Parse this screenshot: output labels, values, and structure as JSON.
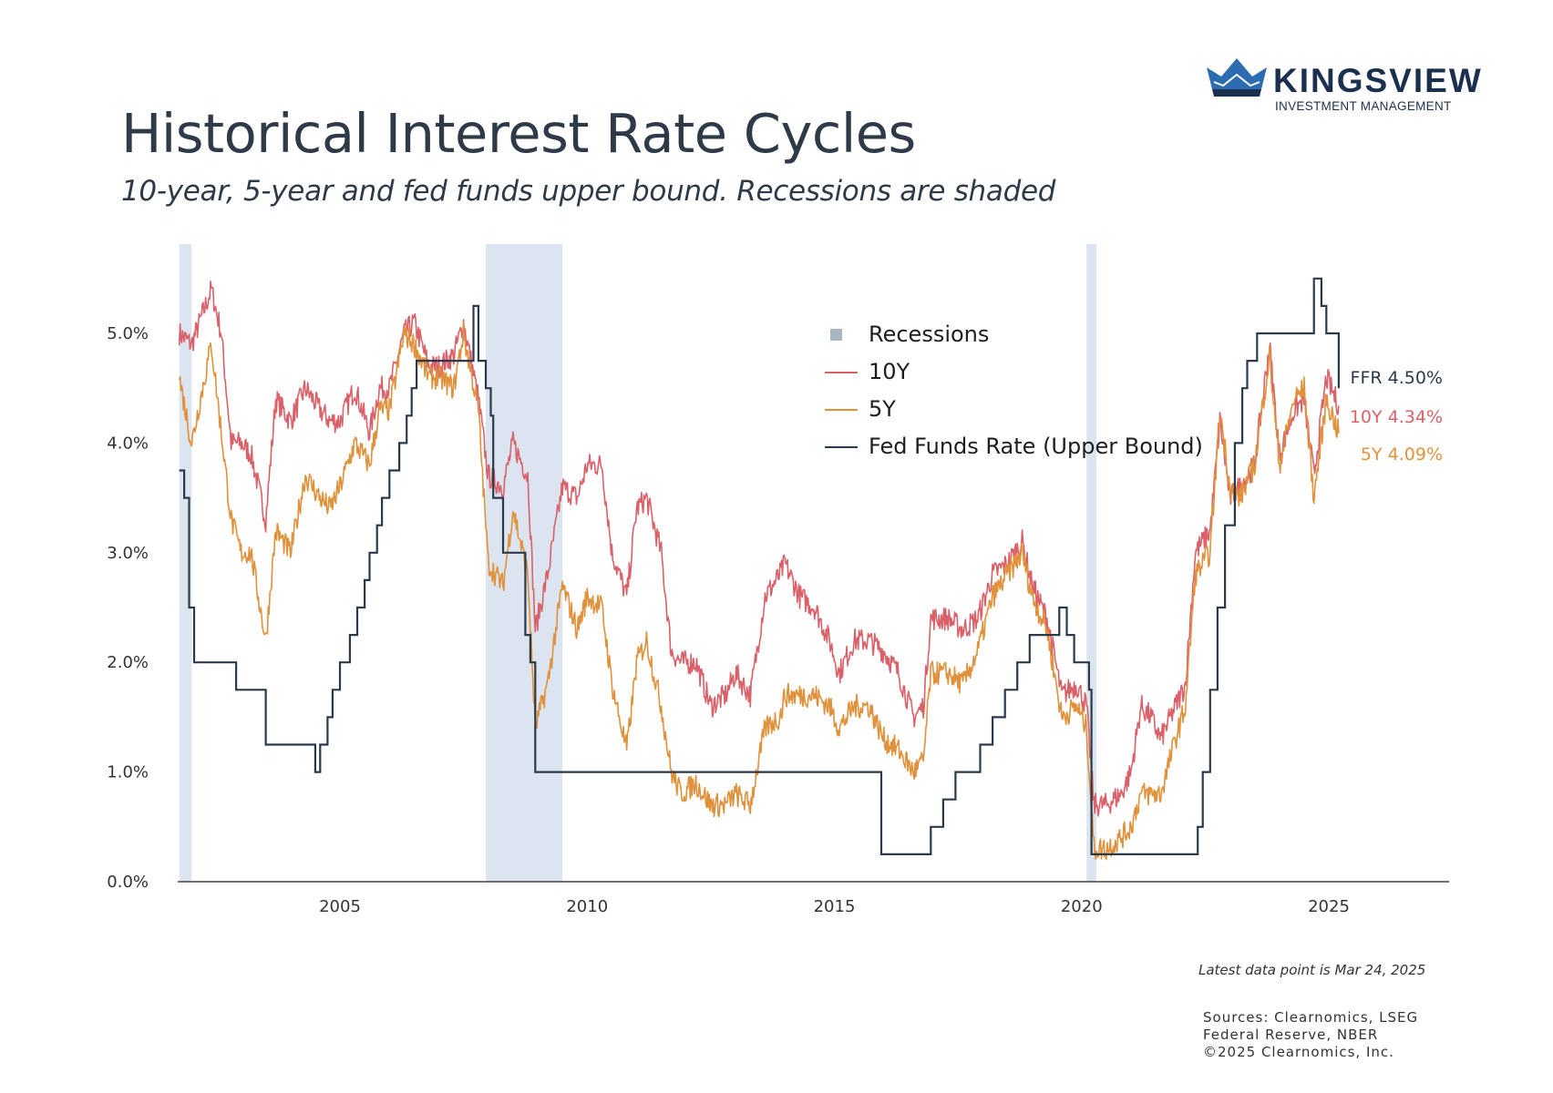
{
  "brand": {
    "name": "KINGSVIEW",
    "tagline": "INVESTMENT MANAGEMENT",
    "colors": {
      "navy": "#1b2f4e",
      "blue": "#2d6cb0"
    }
  },
  "header": {
    "title": "Historical Interest Rate Cycles",
    "subtitle": "10-year, 5-year and fed funds upper bound. Recessions are shaded"
  },
  "footer": {
    "latest": "Latest data point is Mar 24, 2025",
    "sources": [
      "Sources: Clearnomics, LSEG",
      "Federal Reserve, NBER",
      "©2025 Clearnomics, Inc."
    ]
  },
  "chart_data": {
    "type": "line",
    "title": "Historical Interest Rate Cycles",
    "xlabel": "",
    "ylabel": "",
    "xlim": [
      2001.75,
      2027.3
    ],
    "ylim": [
      0,
      5.5
    ],
    "grid": false,
    "legend_position": "top-center",
    "y_ticks": [
      0,
      1,
      2,
      3,
      4,
      5
    ],
    "y_tick_labels": [
      "0.0%",
      "1.0%",
      "2.0%",
      "3.0%",
      "4.0%",
      "5.0%"
    ],
    "x_ticks": [
      2005,
      2010,
      2015,
      2020,
      2025
    ],
    "x_tick_labels": [
      "2005",
      "2010",
      "2015",
      "2020",
      "2025"
    ],
    "legend": [
      {
        "label": "Recessions",
        "kind": "box",
        "color": "#a9b6c2"
      },
      {
        "label": "10Y",
        "kind": "line",
        "color": "#d9626a"
      },
      {
        "label": "5Y",
        "kind": "line",
        "color": "#e0913b"
      },
      {
        "label": "Fed Funds Rate (Upper Bound)",
        "kind": "line",
        "color": "#2b3a4b"
      }
    ],
    "recessions": [
      {
        "start": 2001.75,
        "end": 2002.0
      },
      {
        "start": 2007.95,
        "end": 2009.5
      },
      {
        "start": 2020.1,
        "end": 2020.3
      }
    ],
    "series": [
      {
        "name": "10Y",
        "color": "#d9626a",
        "x": [
          2001.75,
          2002.0,
          2002.4,
          2002.6,
          2002.8,
          2003.0,
          2003.2,
          2003.5,
          2003.7,
          2004.0,
          2004.3,
          2004.6,
          2004.8,
          2005.0,
          2005.3,
          2005.6,
          2005.8,
          2006.0,
          2006.3,
          2006.5,
          2006.8,
          2007.0,
          2007.3,
          2007.5,
          2007.8,
          2008.0,
          2008.3,
          2008.5,
          2008.8,
          2008.95,
          2009.2,
          2009.5,
          2009.8,
          2010.0,
          2010.3,
          2010.5,
          2010.8,
          2011.0,
          2011.2,
          2011.5,
          2011.7,
          2011.9,
          2012.2,
          2012.5,
          2012.8,
          2013.0,
          2013.3,
          2013.6,
          2013.9,
          2014.0,
          2014.3,
          2014.6,
          2014.9,
          2015.1,
          2015.4,
          2015.7,
          2016.0,
          2016.3,
          2016.6,
          2016.8,
          2016.95,
          2017.3,
          2017.6,
          2017.9,
          2018.2,
          2018.5,
          2018.8,
          2019.0,
          2019.3,
          2019.6,
          2019.9,
          2020.1,
          2020.25,
          2020.5,
          2020.8,
          2021.0,
          2021.2,
          2021.4,
          2021.6,
          2021.9,
          2022.1,
          2022.3,
          2022.6,
          2022.8,
          2023.0,
          2023.2,
          2023.5,
          2023.8,
          2024.0,
          2024.3,
          2024.5,
          2024.7,
          2024.95,
          2025.2
        ],
        "values": [
          5.0,
          4.9,
          5.4,
          5.0,
          4.0,
          4.0,
          3.9,
          3.3,
          4.4,
          4.2,
          4.5,
          4.3,
          4.2,
          4.2,
          4.5,
          4.1,
          4.5,
          4.5,
          5.0,
          5.1,
          4.7,
          4.7,
          4.8,
          5.1,
          4.4,
          3.7,
          3.6,
          4.0,
          3.7,
          2.3,
          2.8,
          3.6,
          3.5,
          3.8,
          3.8,
          3.0,
          2.6,
          3.4,
          3.5,
          3.0,
          2.1,
          2.0,
          2.0,
          1.6,
          1.7,
          1.9,
          1.7,
          2.6,
          2.8,
          2.9,
          2.6,
          2.5,
          2.2,
          1.9,
          2.2,
          2.2,
          2.1,
          1.9,
          1.5,
          1.6,
          2.4,
          2.4,
          2.3,
          2.4,
          2.8,
          2.9,
          3.1,
          2.7,
          2.4,
          1.7,
          1.8,
          1.6,
          0.7,
          0.7,
          0.8,
          1.0,
          1.6,
          1.5,
          1.3,
          1.6,
          1.8,
          3.0,
          3.2,
          4.2,
          3.5,
          3.6,
          3.8,
          4.9,
          3.9,
          4.3,
          4.4,
          3.7,
          4.6,
          4.34
        ]
      },
      {
        "name": "5Y",
        "color": "#e0913b",
        "x": [
          2001.75,
          2002.0,
          2002.4,
          2002.6,
          2002.8,
          2003.0,
          2003.2,
          2003.5,
          2003.7,
          2004.0,
          2004.3,
          2004.6,
          2004.8,
          2005.0,
          2005.3,
          2005.6,
          2005.8,
          2006.0,
          2006.3,
          2006.5,
          2006.8,
          2007.0,
          2007.3,
          2007.5,
          2007.8,
          2008.0,
          2008.3,
          2008.5,
          2008.8,
          2008.95,
          2009.2,
          2009.5,
          2009.8,
          2010.0,
          2010.3,
          2010.5,
          2010.8,
          2011.0,
          2011.2,
          2011.5,
          2011.7,
          2011.9,
          2012.2,
          2012.5,
          2012.8,
          2013.0,
          2013.3,
          2013.6,
          2013.9,
          2014.0,
          2014.3,
          2014.6,
          2014.9,
          2015.1,
          2015.4,
          2015.7,
          2016.0,
          2016.3,
          2016.6,
          2016.8,
          2016.95,
          2017.3,
          2017.6,
          2017.9,
          2018.2,
          2018.5,
          2018.8,
          2019.0,
          2019.3,
          2019.6,
          2019.9,
          2020.1,
          2020.25,
          2020.5,
          2020.8,
          2021.0,
          2021.2,
          2021.4,
          2021.6,
          2021.9,
          2022.1,
          2022.3,
          2022.6,
          2022.8,
          2023.0,
          2023.2,
          2023.5,
          2023.8,
          2024.0,
          2024.3,
          2024.5,
          2024.7,
          2024.95,
          2025.2
        ],
        "values": [
          4.6,
          4.0,
          4.9,
          4.1,
          3.3,
          3.0,
          3.0,
          2.2,
          3.2,
          3.0,
          3.7,
          3.5,
          3.4,
          3.6,
          4.0,
          3.8,
          4.3,
          4.3,
          5.0,
          4.9,
          4.6,
          4.6,
          4.5,
          5.0,
          4.3,
          2.9,
          2.7,
          3.4,
          2.8,
          1.4,
          1.8,
          2.7,
          2.3,
          2.6,
          2.5,
          1.8,
          1.2,
          2.0,
          2.2,
          1.6,
          1.0,
          0.8,
          0.9,
          0.7,
          0.7,
          0.8,
          0.7,
          1.4,
          1.5,
          1.7,
          1.7,
          1.7,
          1.6,
          1.4,
          1.6,
          1.6,
          1.3,
          1.2,
          1.0,
          1.1,
          1.9,
          1.9,
          1.8,
          2.1,
          2.6,
          2.8,
          3.0,
          2.6,
          2.3,
          1.5,
          1.6,
          1.4,
          0.3,
          0.3,
          0.4,
          0.5,
          0.8,
          0.8,
          0.8,
          1.3,
          1.6,
          2.8,
          3.0,
          4.3,
          3.6,
          3.5,
          3.8,
          4.8,
          3.8,
          4.4,
          4.5,
          3.5,
          4.4,
          4.09
        ]
      },
      {
        "name": "Fed Funds Rate (Upper Bound)",
        "color": "#2b3a4b",
        "step": true,
        "x": [
          2001.75,
          2001.85,
          2001.95,
          2002.05,
          2002.9,
          2003.5,
          2004.5,
          2004.6,
          2004.75,
          2004.85,
          2005.0,
          2005.2,
          2005.35,
          2005.5,
          2005.6,
          2005.75,
          2005.85,
          2006.0,
          2006.2,
          2006.35,
          2006.45,
          2006.55,
          2007.7,
          2007.8,
          2007.95,
          2008.05,
          2008.1,
          2008.3,
          2008.75,
          2008.85,
          2008.95,
          2015.95,
          2016.95,
          2017.2,
          2017.45,
          2017.95,
          2018.2,
          2018.45,
          2018.7,
          2018.95,
          2019.55,
          2019.7,
          2019.85,
          2020.15,
          2020.2,
          2022.2,
          2022.35,
          2022.45,
          2022.6,
          2022.75,
          2022.9,
          2023.1,
          2023.25,
          2023.35,
          2023.55,
          2024.7,
          2024.85,
          2024.95,
          2025.2
        ],
        "values": [
          3.75,
          3.5,
          2.5,
          2.0,
          1.75,
          1.25,
          1.0,
          1.25,
          1.5,
          1.75,
          2.0,
          2.25,
          2.5,
          2.75,
          3.0,
          3.25,
          3.5,
          3.75,
          4.0,
          4.25,
          4.5,
          4.75,
          5.25,
          4.75,
          4.5,
          4.25,
          3.5,
          3.0,
          2.25,
          2.0,
          1.0,
          0.25,
          0.5,
          0.75,
          1.0,
          1.25,
          1.5,
          1.75,
          2.0,
          2.25,
          2.5,
          2.25,
          2.0,
          1.75,
          0.25,
          0.25,
          0.5,
          1.0,
          1.75,
          2.5,
          3.25,
          4.0,
          4.5,
          4.75,
          5.0,
          5.5,
          5.25,
          5.0,
          4.5
        ]
      }
    ],
    "end_labels": [
      {
        "text": "FFR 4.50%",
        "value": 4.5,
        "color": "#2b3a4b"
      },
      {
        "text": "10Y 4.34%",
        "value": 4.34,
        "color": "#d9626a"
      },
      {
        "text": "5Y 4.09%",
        "value": 4.09,
        "color": "#e0913b"
      }
    ]
  }
}
